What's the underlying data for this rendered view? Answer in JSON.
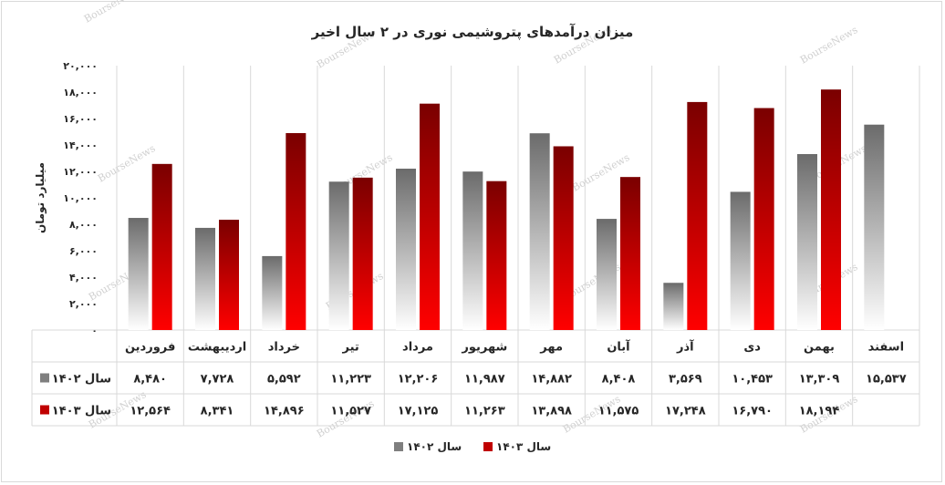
{
  "chart_data": {
    "type": "bar",
    "title": "میزان درآمدهای پتروشیمی نوری در ۲ سال اخیر",
    "ylabel": "میلیارد تومان",
    "xlabel": "",
    "ylim": [
      0,
      20000
    ],
    "yticks": [
      "۰",
      "۲,۰۰۰",
      "۴,۰۰۰",
      "۶,۰۰۰",
      "۸,۰۰۰",
      "۱۰,۰۰۰",
      "۱۲,۰۰۰",
      "۱۴,۰۰۰",
      "۱۶,۰۰۰",
      "۱۸,۰۰۰",
      "۲۰,۰۰۰"
    ],
    "categories": [
      "فروردین",
      "اردیبهشت",
      "خرداد",
      "تیر",
      "مرداد",
      "شهریور",
      "مهر",
      "آبان",
      "آذر",
      "دی",
      "بهمن",
      "اسفند"
    ],
    "series": [
      {
        "name": "سال ۱۴۰۲",
        "color": "#7f7f7f",
        "values": [
          8480,
          7728,
          5592,
          11223,
          12206,
          11987,
          14882,
          8408,
          3569,
          10453,
          13309,
          15537
        ],
        "labels": [
          "۸,۴۸۰",
          "۷,۷۲۸",
          "۵,۵۹۲",
          "۱۱,۲۲۳",
          "۱۲,۲۰۶",
          "۱۱,۹۸۷",
          "۱۴,۸۸۲",
          "۸,۴۰۸",
          "۳,۵۶۹",
          "۱۰,۴۵۳",
          "۱۳,۳۰۹",
          "۱۵,۵۳۷"
        ]
      },
      {
        "name": "سال ۱۴۰۳",
        "color": "#c00000",
        "values": [
          12564,
          8341,
          14896,
          11527,
          17125,
          11263,
          13898,
          11575,
          17248,
          16790,
          18194,
          null
        ],
        "labels": [
          "۱۲,۵۶۴",
          "۸,۳۴۱",
          "۱۴,۸۹۶",
          "۱۱,۵۲۷",
          "۱۷,۱۲۵",
          "۱۱,۲۶۳",
          "۱۳,۸۹۸",
          "۱۱,۵۷۵",
          "۱۷,۲۴۸",
          "۱۶,۷۹۰",
          "۱۸,۱۹۴",
          ""
        ]
      }
    ],
    "grid": "vertical",
    "legend_position": "bottom",
    "data_table": true
  },
  "watermark": "BourseNews"
}
